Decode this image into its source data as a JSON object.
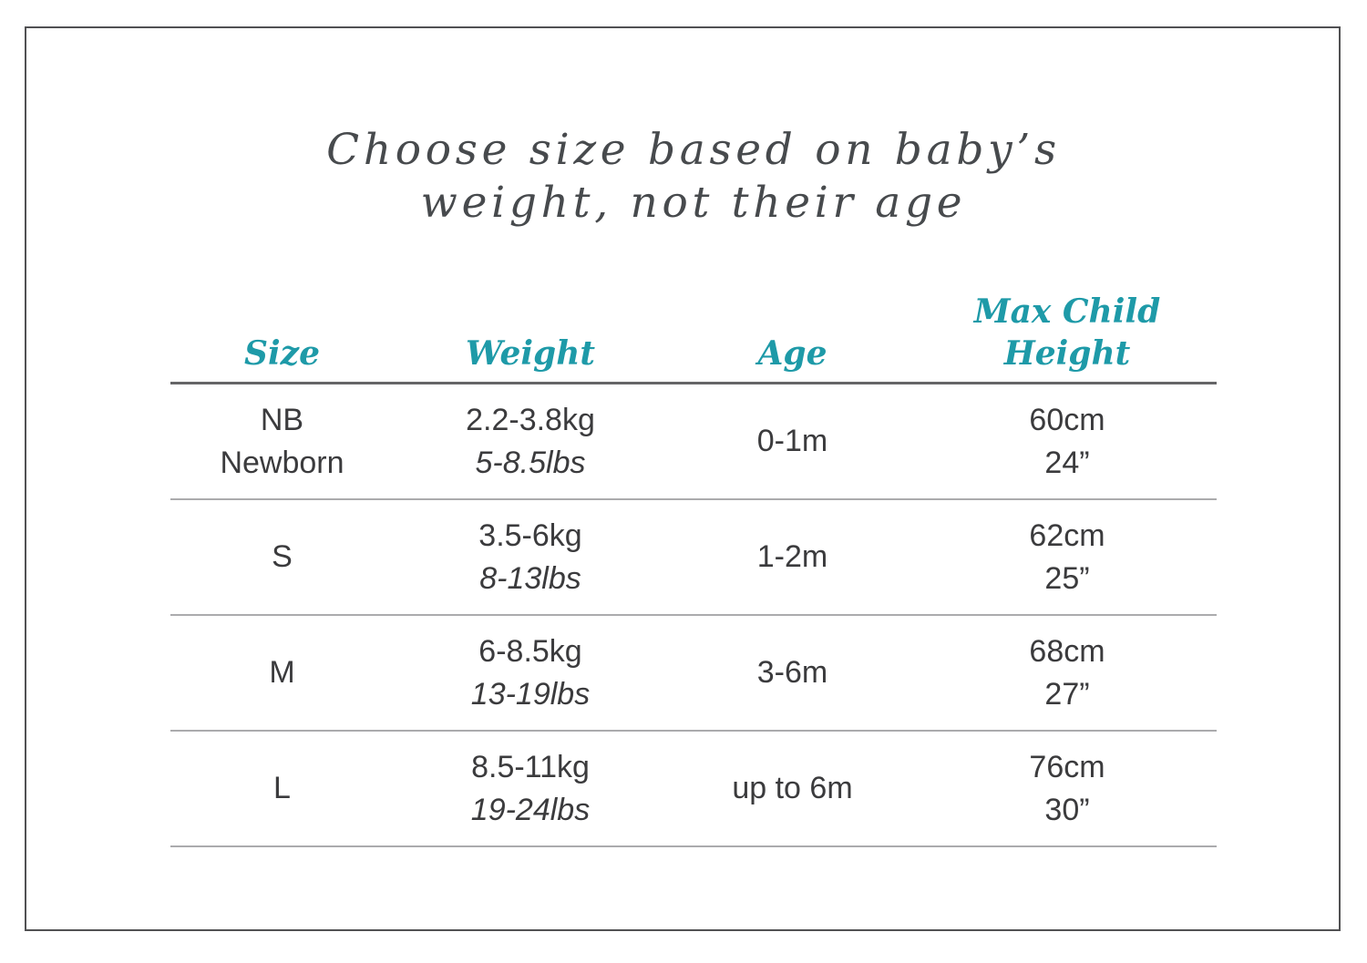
{
  "title": {
    "line1": "Choose size based on baby’s",
    "line2": "weight, not their age"
  },
  "colors": {
    "accent_teal": "#1e9aa8",
    "body_text": "#3b3b3d",
    "title_text": "#474a4d",
    "header_rule": "#656567",
    "row_rule": "#ababad",
    "frame_border": "#515153"
  },
  "table": {
    "headers": [
      "Size",
      "Weight",
      "Age",
      "Max Child Height"
    ],
    "rows": [
      {
        "size": [
          "NB",
          "Newborn"
        ],
        "weight_kg": "2.2-3.8kg",
        "weight_lbs": "5-8.5lbs",
        "age": "0-1m",
        "height_cm": "60cm",
        "height_in": "24”"
      },
      {
        "size": [
          "S"
        ],
        "weight_kg": "3.5-6kg",
        "weight_lbs": "8-13lbs",
        "age": "1-2m",
        "height_cm": "62cm",
        "height_in": "25”"
      },
      {
        "size": [
          "M"
        ],
        "weight_kg": "6-8.5kg",
        "weight_lbs": "13-19lbs",
        "age": "3-6m",
        "height_cm": "68cm",
        "height_in": "27”"
      },
      {
        "size": [
          "L"
        ],
        "weight_kg": "8.5-11kg",
        "weight_lbs": "19-24lbs",
        "age": "up to 6m",
        "height_cm": "76cm",
        "height_in": "30”"
      }
    ]
  },
  "chart_data": {
    "type": "table",
    "title": "Choose size based on baby’s weight, not their age",
    "columns": [
      "Size",
      "Weight",
      "Age",
      "Max Child Height"
    ],
    "rows": [
      [
        "NB Newborn",
        "2.2-3.8kg / 5-8.5lbs",
        "0-1m",
        "60cm / 24”"
      ],
      [
        "S",
        "3.5-6kg / 8-13lbs",
        "1-2m",
        "62cm / 25”"
      ],
      [
        "M",
        "6-8.5kg / 13-19lbs",
        "3-6m",
        "68cm / 27”"
      ],
      [
        "L",
        "8.5-11kg / 19-24lbs",
        "up to 6m",
        "76cm / 30”"
      ]
    ]
  }
}
